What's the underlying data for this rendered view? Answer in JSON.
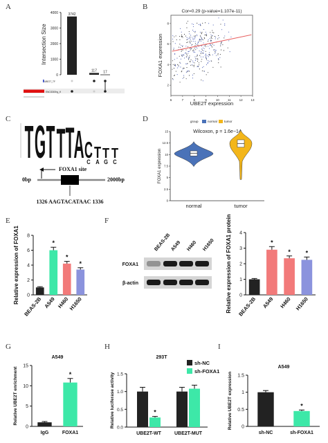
{
  "panel_letters": {
    "A": "A",
    "B": "B",
    "C": "C",
    "D": "D",
    "E": "E",
    "F": "F",
    "G": "G",
    "H": "H",
    "I": "I"
  },
  "colors": {
    "black": "#111111",
    "red": "#e01010",
    "blue_row": "#2a3fbf",
    "scatter_line": "#e86060",
    "normal": "#4a72b8",
    "tumor": "#f3b61a",
    "teal": "#3de8a8",
    "coral": "#f27a7a",
    "periwinkle": "#8b93dd",
    "dark_bar": "#222222"
  },
  "chart_data": [
    {
      "id": "A",
      "type": "bar",
      "ylabel": "Intersection Size",
      "yticks": [
        0,
        1000,
        2000,
        3000,
        4000
      ],
      "ylim": [
        0,
        4000
      ],
      "values": [
        3742,
        117,
        17
      ],
      "value_labels": [
        "3742",
        "117",
        "17"
      ],
      "sets": [
        "UBE2T_TF",
        "ENCODE/hg_tf"
      ]
    },
    {
      "id": "B",
      "type": "scatter",
      "title": "Cor=0.29 (p-value=1.107e-11)",
      "xlabel": "UBE2T expression",
      "ylabel": "FOXA1 expression",
      "xticks": [
        6,
        7,
        8,
        9,
        10,
        11,
        12,
        13
      ],
      "yticks": [
        2,
        4,
        6,
        8
      ],
      "xlim": [
        6,
        13
      ],
      "ylim": [
        1,
        8.8
      ],
      "fit": {
        "x": [
          6.1,
          12.9
        ],
        "y": [
          5.3,
          6.9
        ]
      }
    },
    {
      "id": "C",
      "type": "table",
      "motif": [
        "T",
        "G",
        "T",
        "T",
        "T",
        "A",
        "C",
        "T",
        "T",
        "T"
      ],
      "site_label": "FOXA1 site",
      "start_label": "0bp",
      "end_label": "2000bp",
      "site_sequence": "1326 AAGTACATAAC 1336"
    },
    {
      "id": "D",
      "type": "table",
      "legend_title": "group",
      "legend": [
        "normal",
        "tumor"
      ],
      "annotation": "Wilcoxon, p = 1.6e−14",
      "ylabel": "FOXA1 expression",
      "yticks": [
        0,
        2.5,
        5,
        7.5,
        10,
        12.5,
        15
      ],
      "categories": [
        "normal",
        "tumor"
      ],
      "medians": [
        10.3,
        12.4
      ]
    },
    {
      "id": "E",
      "type": "bar",
      "ylabel": "Relative expression of FOXA1",
      "categories": [
        "BEAS-2B",
        "A549",
        "H460",
        "H1650"
      ],
      "values": [
        1.0,
        6.0,
        4.2,
        3.4
      ],
      "errors": [
        0.1,
        0.4,
        0.3,
        0.25
      ],
      "yticks": [
        0,
        2,
        4,
        6,
        8
      ],
      "ylim": [
        0,
        8
      ],
      "stars": [
        "",
        "*",
        "*",
        "*"
      ]
    },
    {
      "id": "F_blot",
      "type": "table",
      "lanes": [
        "BEAS-2B",
        "A549",
        "H460",
        "H1650"
      ],
      "rows": [
        "FOXA1",
        "β-actin"
      ]
    },
    {
      "id": "F_bar",
      "type": "bar",
      "ylabel": "Relative expression of FOXA1 protein",
      "categories": [
        "BEAS-2B",
        "A549",
        "H460",
        "H1650"
      ],
      "values": [
        1.0,
        2.9,
        2.35,
        2.25
      ],
      "errors": [
        0.05,
        0.2,
        0.15,
        0.18
      ],
      "yticks": [
        0,
        1,
        2,
        3,
        4
      ],
      "ylim": [
        0,
        4
      ],
      "stars": [
        "",
        "*",
        "*",
        "*"
      ]
    },
    {
      "id": "G",
      "type": "bar",
      "title": "A549",
      "ylabel": "Relative UBE2T enrichment",
      "categories": [
        "IgG",
        "FOXA1"
      ],
      "values": [
        1.0,
        10.8
      ],
      "errors": [
        0.2,
        1.0
      ],
      "yticks": [
        0,
        5,
        10,
        15
      ],
      "ylim": [
        0,
        15
      ],
      "stars": [
        "",
        "*"
      ]
    },
    {
      "id": "H",
      "type": "bar",
      "title": "293T",
      "ylabel": "Relative luciferase activity",
      "categories": [
        "UBE2T-WT",
        "UBE2T-MUT"
      ],
      "series": [
        {
          "name": "sh-NC",
          "values": [
            1.0,
            1.0
          ],
          "errors": [
            0.12,
            0.12
          ]
        },
        {
          "name": "sh-FOXA1",
          "values": [
            0.27,
            1.08
          ],
          "errors": [
            0.03,
            0.1
          ]
        }
      ],
      "yticks": [
        0.0,
        0.5,
        1.0,
        1.5
      ],
      "ylim": [
        0,
        1.5
      ],
      "stars": [
        [
          "",
          "*"
        ],
        [
          "",
          ""
        ]
      ]
    },
    {
      "id": "I",
      "type": "bar",
      "title": "A549",
      "ylabel": "Relative UBE2T expression",
      "categories": [
        "sh-NC",
        "sh-FOXA1"
      ],
      "values": [
        1.0,
        0.45
      ],
      "errors": [
        0.05,
        0.03
      ],
      "yticks": [
        0.0,
        0.5,
        1.0,
        1.5
      ],
      "ylim": [
        0,
        1.5
      ],
      "stars": [
        "",
        "*"
      ]
    }
  ]
}
